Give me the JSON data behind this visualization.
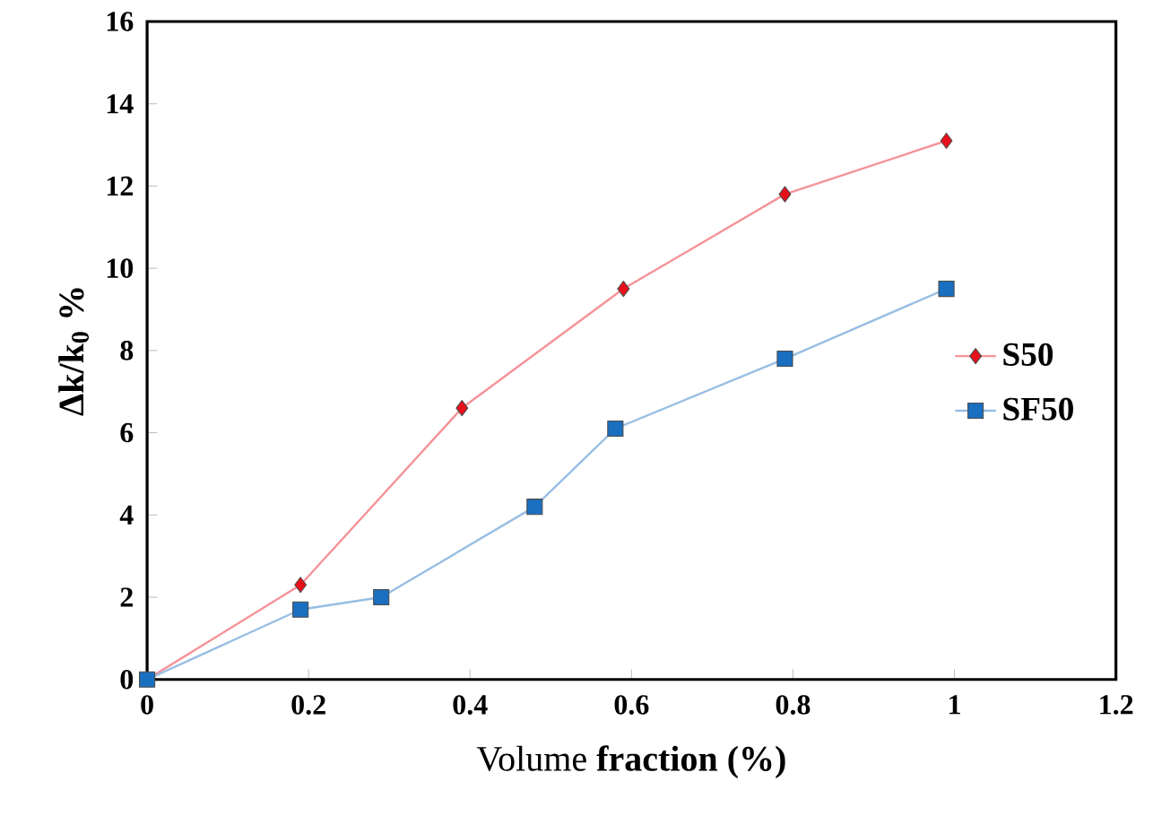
{
  "chart_data": {
    "type": "line",
    "xlabel": "Volume **fraction (%)**",
    "ylabel": "Δk/k$_{0}$ %",
    "xlim": [
      0,
      1.2
    ],
    "xticks": [
      0,
      0.2,
      0.4,
      0.6,
      0.8,
      1,
      1.2
    ],
    "ylim": [
      0,
      16
    ],
    "yticks": [
      0,
      2,
      4,
      6,
      8,
      10,
      12,
      14,
      16
    ],
    "grid": false,
    "legend": "right",
    "series": [
      {
        "name": "S50",
        "color": "#e8101a",
        "marker": "diamond",
        "x": [
          0,
          0.19,
          0.39,
          0.59,
          0.79,
          0.99
        ],
        "values": [
          0,
          2.3,
          6.6,
          9.5,
          11.8,
          13.1
        ]
      },
      {
        "name": "SF50",
        "color": "#1a6fc0",
        "marker": "square",
        "x": [
          0,
          0.19,
          0.29,
          0.48,
          0.58,
          0.79,
          0.99
        ],
        "values": [
          0,
          1.7,
          2.0,
          4.2,
          6.1,
          7.8,
          9.5
        ]
      }
    ]
  }
}
